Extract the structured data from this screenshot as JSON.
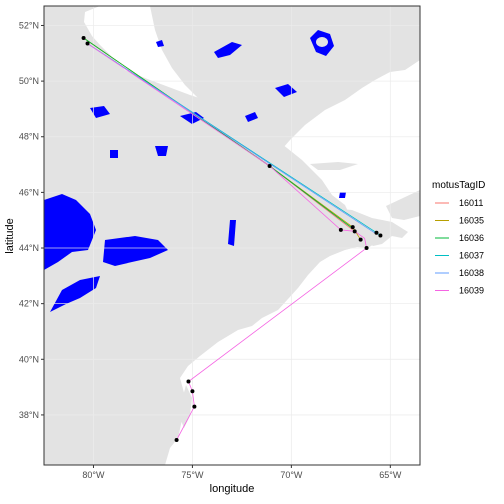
{
  "chart_data": {
    "type": "map",
    "xlabel": "longitude",
    "ylabel": "latitude",
    "xlim": [
      -82.5,
      -63.5
    ],
    "ylim": [
      36.2,
      52.7
    ],
    "x_ticks": [
      {
        "value": -80,
        "label": "80°W"
      },
      {
        "value": -75,
        "label": "75°W"
      },
      {
        "value": -70,
        "label": "70°W"
      },
      {
        "value": -65,
        "label": "65°W"
      }
    ],
    "y_ticks": [
      {
        "value": 38,
        "label": "38°N"
      },
      {
        "value": 40,
        "label": "40°N"
      },
      {
        "value": 42,
        "label": "42°N"
      },
      {
        "value": 44,
        "label": "44°N"
      },
      {
        "value": 46,
        "label": "46°N"
      },
      {
        "value": 48,
        "label": "48°N"
      },
      {
        "value": 50,
        "label": "50°N"
      },
      {
        "value": 52,
        "label": "52°N"
      }
    ],
    "grid": true,
    "legend_position": "right",
    "legend_title": "motusTagID",
    "series": [
      {
        "name": "16011",
        "color": "#F8766D",
        "points": [
          [
            -80.5,
            51.55
          ],
          [
            -71.1,
            46.95
          ],
          [
            -66.9,
            44.65
          ]
        ]
      },
      {
        "name": "16035",
        "color": "#B79F00",
        "points": [
          [
            -80.5,
            51.55
          ],
          [
            -71.1,
            46.95
          ],
          [
            -66.9,
            44.75
          ],
          [
            -66.5,
            44.3
          ]
        ]
      },
      {
        "name": "16036",
        "color": "#00BA38",
        "points": [
          [
            -80.5,
            51.55
          ],
          [
            -71.1,
            46.95
          ],
          [
            -66.9,
            44.7
          ]
        ]
      },
      {
        "name": "16037",
        "color": "#00BFC4",
        "points": [
          [
            -80.3,
            51.35
          ],
          [
            -65.7,
            44.55
          ],
          [
            -65.5,
            44.45
          ]
        ]
      },
      {
        "name": "16038",
        "color": "#619CFF",
        "points": [
          [
            -80.3,
            51.35
          ],
          [
            -65.7,
            44.5
          ]
        ]
      },
      {
        "name": "16039",
        "color": "#F564E3",
        "points": [
          [
            -80.3,
            51.35
          ],
          [
            -71.1,
            46.95
          ],
          [
            -67.5,
            44.65
          ],
          [
            -66.8,
            44.6
          ],
          [
            -66.3,
            44.35
          ],
          [
            -66.2,
            44.0
          ],
          [
            -75.2,
            39.2
          ],
          [
            -75.0,
            38.85
          ],
          [
            -74.9,
            38.3
          ],
          [
            -75.8,
            37.1
          ]
        ]
      }
    ],
    "detections": [
      [
        -80.5,
        51.55
      ],
      [
        -80.3,
        51.35
      ],
      [
        -71.1,
        46.95
      ],
      [
        -67.5,
        44.65
      ],
      [
        -66.9,
        44.75
      ],
      [
        -66.8,
        44.6
      ],
      [
        -66.5,
        44.3
      ],
      [
        -65.7,
        44.55
      ],
      [
        -65.5,
        44.45
      ],
      [
        -66.2,
        44.0
      ],
      [
        -75.2,
        39.2
      ],
      [
        -75.0,
        38.85
      ],
      [
        -74.9,
        38.3
      ],
      [
        -75.8,
        37.1
      ]
    ],
    "land_color": "#e3e3e3",
    "sea_color": "#ffffff",
    "lake_color": "#0000ff",
    "point_color": "#000000"
  }
}
